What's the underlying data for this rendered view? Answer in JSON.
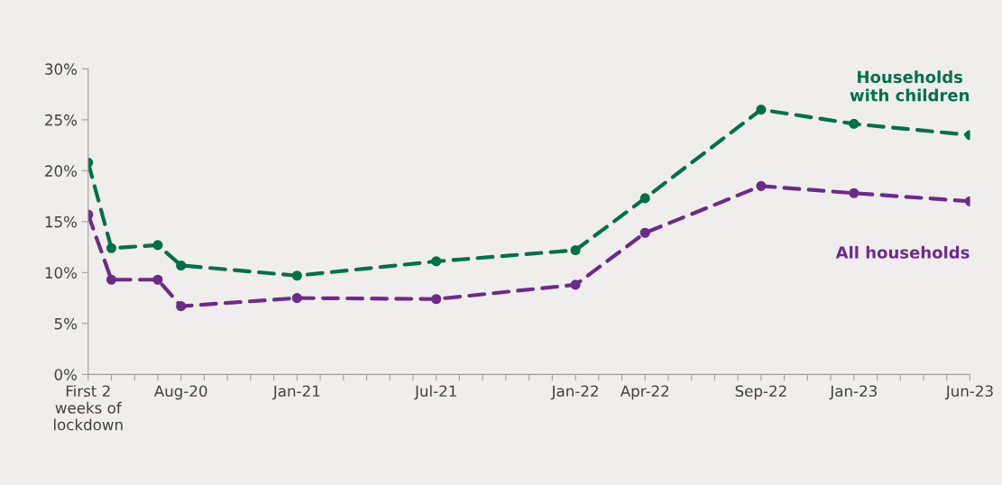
{
  "chart_data": {
    "type": "line",
    "categories": [
      "First 2\nweeks of\nlockdown",
      null,
      null,
      null,
      "Aug-20",
      null,
      null,
      null,
      null,
      "Jan-21",
      null,
      null,
      null,
      null,
      null,
      "Jul-21",
      null,
      null,
      null,
      null,
      null,
      "Jan-22",
      null,
      null,
      "Apr-22",
      null,
      null,
      null,
      null,
      "Sep-22",
      null,
      null,
      null,
      "Jan-23",
      null,
      null,
      null,
      null,
      "Jun-23"
    ],
    "series": [
      {
        "name": "Households\nwith children",
        "color": "#00704a",
        "values": [
          20.8,
          12.4,
          null,
          12.7,
          10.7,
          null,
          null,
          null,
          null,
          9.7,
          null,
          null,
          null,
          null,
          null,
          11.1,
          null,
          null,
          null,
          null,
          null,
          12.2,
          null,
          null,
          17.3,
          null,
          null,
          null,
          null,
          26.0,
          null,
          null,
          null,
          24.6,
          null,
          null,
          null,
          null,
          23.5
        ]
      },
      {
        "name": "All households",
        "color": "#6a2c8a",
        "values": [
          15.7,
          9.3,
          null,
          9.3,
          6.7,
          null,
          null,
          null,
          null,
          7.5,
          null,
          null,
          null,
          null,
          null,
          7.4,
          null,
          null,
          null,
          null,
          null,
          8.8,
          null,
          null,
          13.9,
          null,
          null,
          null,
          null,
          18.5,
          null,
          null,
          null,
          17.8,
          null,
          null,
          null,
          null,
          17.0
        ]
      }
    ],
    "ylim": [
      0,
      30
    ],
    "yticks": [
      {
        "value": 0,
        "label": "0%"
      },
      {
        "value": 5,
        "label": "5%"
      },
      {
        "value": 10,
        "label": "10%"
      },
      {
        "value": 15,
        "label": "15%"
      },
      {
        "value": 20,
        "label": "20%"
      },
      {
        "value": 25,
        "label": "25%"
      },
      {
        "value": 30,
        "label": "30%"
      }
    ],
    "grid": false,
    "legend": false,
    "marker": "circle",
    "line_style": "dashed"
  }
}
